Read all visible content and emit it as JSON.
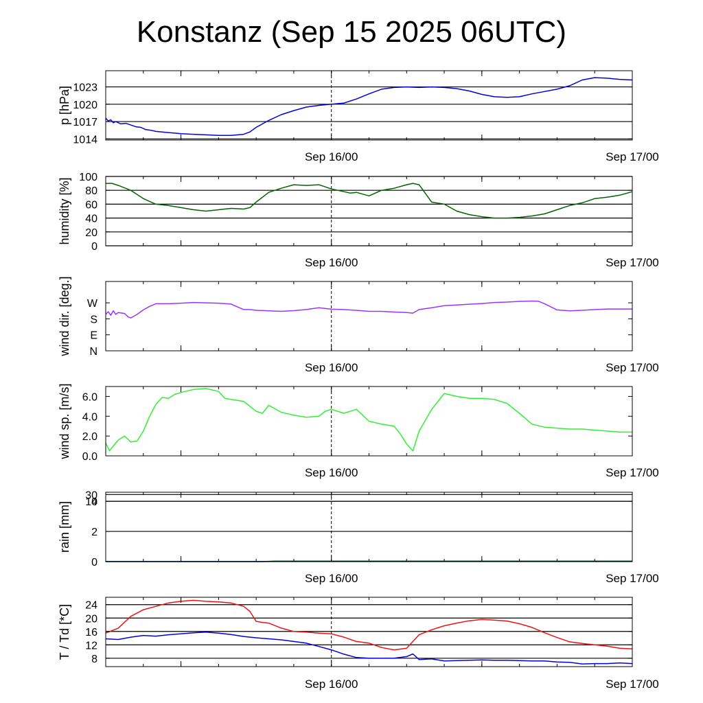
{
  "title": "Konstanz (Sep 15 2025 06UTC)",
  "x_axis": {
    "start": "2025-09-15 06:00 UTC",
    "end": "2025-09-17 00:00 UTC",
    "tick_labels": [
      {
        "label": "Sep 16/00",
        "time": "2025-09-16 00:00 UTC"
      },
      {
        "label": "Sep 17/00",
        "time": "2025-09-17 00:00 UTC"
      }
    ],
    "minor_ticks": [
      "2025-09-15 12:00 UTC",
      "2025-09-16 12:00 UTC"
    ],
    "marker_line": "2025-09-16 00:00 UTC"
  },
  "chart_data": [
    {
      "type": "line",
      "ylabel": "p [hPa]",
      "ylim": [
        1013.8,
        1025.8
      ],
      "yticks": [
        1014,
        1017,
        1020,
        1023
      ],
      "ytick_labels": [
        "1014",
        "1017",
        "1020",
        "1023"
      ],
      "grid": "horizontal",
      "series": [
        {
          "color": "#0000dd",
          "x": [
            0,
            0.2,
            0.4,
            0.6,
            0.8,
            1.2,
            1.6,
            2,
            2.4,
            2.8,
            3.2,
            3.6,
            4,
            4.5,
            5,
            5.5,
            6,
            7,
            8,
            9,
            10,
            11,
            11.5,
            12,
            13,
            14,
            15,
            16,
            17,
            18,
            19,
            20,
            21,
            22,
            23,
            24,
            25,
            26,
            27,
            28,
            29,
            30,
            31,
            32,
            33,
            34,
            35,
            36,
            37,
            38,
            39,
            40,
            41,
            42
          ],
          "y": [
            1017.6,
            1017.1,
            1017.3,
            1016.8,
            1017.0,
            1016.6,
            1016.7,
            1016.4,
            1016.1,
            1016.0,
            1015.6,
            1015.5,
            1015.3,
            1015.2,
            1015.1,
            1015.0,
            1014.9,
            1014.8,
            1014.7,
            1014.6,
            1014.6,
            1014.8,
            1015.2,
            1016.0,
            1017.2,
            1018.2,
            1018.9,
            1019.5,
            1019.8,
            1020.0,
            1020.2,
            1020.9,
            1021.8,
            1022.6,
            1022.9,
            1023.0,
            1022.9,
            1023.0,
            1022.9,
            1022.7,
            1022.3,
            1021.7,
            1021.3,
            1021.2,
            1021.3,
            1021.8,
            1022.2,
            1022.6,
            1023.2,
            1024.2,
            1024.6,
            1024.5,
            1024.3,
            1024.2
          ]
        }
      ]
    },
    {
      "type": "line",
      "ylabel": "humidity [%]",
      "ylim": [
        0,
        100
      ],
      "yticks": [
        0,
        20,
        40,
        60,
        80,
        100
      ],
      "ytick_labels": [
        "0",
        "20",
        "40",
        "60",
        "80",
        "100"
      ],
      "grid": "horizontal",
      "series": [
        {
          "color": "#006400",
          "x": [
            0,
            0.5,
            1,
            2,
            3,
            4,
            5,
            6,
            7,
            8,
            9,
            10,
            11,
            11.5,
            12,
            13,
            14,
            15,
            16,
            17,
            18,
            19,
            19.5,
            20,
            21,
            22,
            23,
            24,
            24.5,
            25,
            26,
            27,
            28,
            29,
            30,
            31,
            32,
            33,
            34,
            35,
            36,
            37,
            38,
            39,
            40,
            41,
            42
          ],
          "y": [
            90,
            90,
            87,
            80,
            68,
            60,
            58,
            55,
            52,
            50,
            52,
            54,
            53,
            55,
            63,
            77,
            83,
            88,
            87,
            88,
            82,
            78,
            76,
            77,
            72,
            80,
            83,
            88,
            90,
            88,
            63,
            60,
            50,
            45,
            42,
            40,
            40,
            41,
            43,
            46,
            52,
            58,
            62,
            68,
            70,
            73,
            78
          ]
        }
      ]
    },
    {
      "type": "line",
      "ylabel": "wind dir. [deg.]",
      "ylim": [
        0,
        390
      ],
      "yticks": [
        0,
        90,
        180,
        270
      ],
      "ytick_labels": [
        "N",
        "E",
        "S",
        "W"
      ],
      "grid": "none",
      "series": [
        {
          "color": "#9933ff",
          "x": [
            0,
            0.2,
            0.4,
            0.6,
            0.8,
            1,
            1.5,
            1.8,
            2,
            2.5,
            3,
            3.5,
            4,
            5,
            6,
            7,
            8,
            9,
            10,
            11,
            11.5,
            12,
            13,
            14,
            15,
            16,
            17,
            18,
            19,
            20,
            21,
            22,
            23,
            24,
            24.5,
            25,
            26,
            27,
            28,
            29,
            30,
            31,
            32,
            33,
            34,
            34.5,
            35,
            36,
            37,
            38,
            39,
            40,
            41,
            42
          ],
          "y": [
            205,
            220,
            200,
            225,
            205,
            215,
            210,
            190,
            185,
            205,
            230,
            250,
            265,
            265,
            268,
            272,
            270,
            268,
            263,
            232,
            232,
            228,
            225,
            222,
            226,
            232,
            242,
            234,
            232,
            228,
            222,
            222,
            218,
            215,
            212,
            232,
            242,
            254,
            258,
            262,
            266,
            272,
            274,
            278,
            280,
            279,
            265,
            230,
            225,
            228,
            232,
            235,
            235,
            235
          ]
        }
      ]
    },
    {
      "type": "line",
      "ylabel": "wind sp. [m/s]",
      "ylim": [
        0,
        7.0
      ],
      "yticks": [
        0,
        2,
        4,
        6
      ],
      "ytick_labels": [
        "0.0",
        "2.0",
        "4.0",
        "6.0"
      ],
      "grid": "none",
      "series": [
        {
          "color": "#33ee33",
          "x": [
            0,
            0.3,
            0.6,
            1,
            1.5,
            2,
            2.5,
            3,
            3.5,
            4,
            4.5,
            5,
            5.5,
            6,
            7,
            8,
            9,
            9.5,
            10,
            10.5,
            11,
            12,
            12.5,
            13,
            14,
            15,
            16,
            17,
            17.5,
            18,
            19,
            20,
            21,
            22,
            23,
            23.5,
            24,
            24.5,
            25,
            26,
            27,
            28,
            29,
            30,
            31,
            32,
            33,
            34,
            35,
            36,
            37,
            38,
            39,
            40,
            41,
            42
          ],
          "y": [
            1.3,
            0.5,
            1.0,
            1.6,
            2.0,
            1.4,
            1.5,
            2.5,
            4.0,
            5.2,
            5.9,
            5.8,
            6.2,
            6.4,
            6.7,
            6.8,
            6.5,
            5.8,
            5.7,
            5.6,
            5.5,
            4.5,
            4.3,
            5.1,
            4.4,
            4.1,
            3.9,
            4.0,
            4.5,
            4.7,
            4.3,
            4.7,
            3.5,
            3.2,
            3.0,
            2.2,
            1.2,
            0.5,
            2.5,
            4.7,
            6.3,
            6.0,
            5.8,
            5.8,
            5.7,
            5.3,
            4.3,
            3.2,
            2.9,
            2.8,
            2.7,
            2.7,
            2.6,
            2.5,
            2.4,
            2.4
          ]
        }
      ]
    },
    {
      "type": "line",
      "ylabel": "rain [mm]",
      "ylim": [
        0,
        4.6
      ],
      "yticks": [
        0,
        2,
        4
      ],
      "ytick_labels": [
        "0",
        "2",
        "4"
      ],
      "extra_ticks": [
        {
          "label": "10",
          "pos": 4.0
        },
        {
          "label": "30",
          "pos": 4.45
        }
      ],
      "grid": "horizontal",
      "series": [
        {
          "color": "#22aa22",
          "x": [
            0,
            12.5,
            13.5,
            42
          ],
          "y": [
            0,
            0,
            0.03,
            0.03
          ]
        },
        {
          "color": "#0000dd",
          "x": [
            0,
            12.5,
            13.5,
            42
          ],
          "y": [
            0,
            0,
            0.02,
            0.02
          ]
        }
      ]
    },
    {
      "type": "line",
      "ylabel": "T / Td [*C]",
      "ylim": [
        5.5,
        26.2
      ],
      "yticks": [
        8,
        12,
        16,
        20,
        24
      ],
      "ytick_labels": [
        "8",
        "12",
        "16",
        "20",
        "24"
      ],
      "grid": "horizontal",
      "series": [
        {
          "color": "#ee1111",
          "x": [
            0,
            1,
            2,
            3,
            4,
            5,
            6,
            7,
            8,
            9,
            10,
            11,
            11.5,
            12,
            12.5,
            13,
            14,
            15,
            16,
            17,
            18,
            19,
            20,
            21,
            22,
            23,
            24,
            24.5,
            25,
            26,
            27,
            28,
            29,
            30,
            31,
            32,
            33,
            34,
            35,
            36,
            37,
            38,
            39,
            40,
            41,
            42
          ],
          "y": [
            15.5,
            17,
            20.5,
            22.5,
            23.5,
            24.5,
            25,
            25.3,
            25,
            24.8,
            24.5,
            23.5,
            22,
            19,
            18.7,
            18.5,
            17,
            16,
            15.8,
            15.5,
            15.3,
            14.3,
            13,
            12.5,
            11.2,
            10.5,
            11,
            13,
            15,
            16.5,
            17.7,
            18.5,
            19.2,
            19.6,
            19.4,
            19.1,
            18.3,
            17.2,
            15.6,
            14.2,
            12.9,
            12.4,
            12.0,
            11.6,
            11.0,
            10.8
          ]
        },
        {
          "color": "#0000dd",
          "x": [
            0,
            1,
            2,
            3,
            4,
            5,
            6,
            7,
            8,
            9,
            10,
            11,
            12,
            13,
            14,
            15,
            16,
            17,
            18,
            19,
            20,
            21,
            22,
            23,
            24,
            24.5,
            25,
            26,
            27,
            28,
            29,
            30,
            31,
            32,
            33,
            34,
            35,
            36,
            37,
            38,
            39,
            40,
            41,
            42
          ],
          "y": [
            13.8,
            13.6,
            14.3,
            14.8,
            14.6,
            15.0,
            15.3,
            15.6,
            15.8,
            15.5,
            15.1,
            14.5,
            14.1,
            13.8,
            13.5,
            13.0,
            12.5,
            11.5,
            10.5,
            9.2,
            8.2,
            8.0,
            8.0,
            8.0,
            8.5,
            9.3,
            7.6,
            7.8,
            7.2,
            7.3,
            7.4,
            7.5,
            7.4,
            7.4,
            7.3,
            7.2,
            7.2,
            6.9,
            6.8,
            6.3,
            6.4,
            6.4,
            6.6,
            6.4
          ]
        }
      ]
    }
  ]
}
